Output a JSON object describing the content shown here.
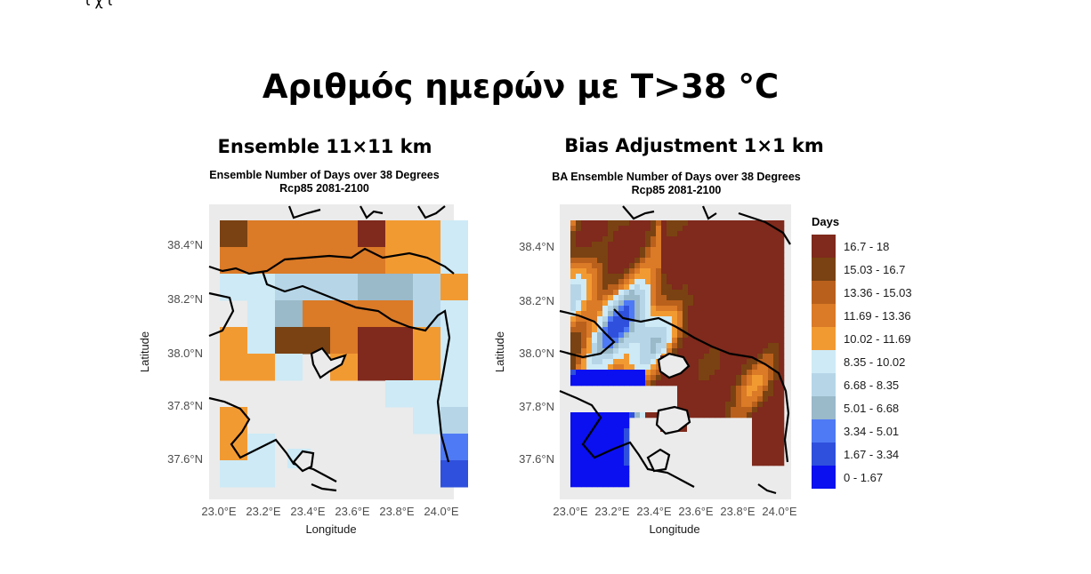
{
  "top_fragment": "ι χ ι",
  "main_title": "Αριθμός ημερών με Τ>38 °C",
  "panels": [
    {
      "subtitle": "Ensemble 11×11 km",
      "plot_title_line1": "Ensemble Number of Days over 38 Degrees",
      "plot_title_line2": "Rcp85 2081-2100"
    },
    {
      "subtitle": "Bias Adjustment 1×1 km",
      "plot_title_line1": "BA Ensemble Number of Days over 38 Degrees",
      "plot_title_line2": "Rcp85 2081-2100"
    }
  ],
  "axes": {
    "x_label": "Longitude",
    "y_label": "Latitude",
    "x_ticks": [
      "23.0°E",
      "23.2°E",
      "23.4°E",
      "23.6°E",
      "23.8°E",
      "24.0°E"
    ],
    "y_ticks": [
      "38.4°N",
      "38.2°N",
      "38.0°N",
      "37.8°N",
      "37.6°N"
    ]
  },
  "legend": {
    "title": "Days",
    "items": [
      {
        "label": "16.7 - 18",
        "color": "#7f2a1c"
      },
      {
        "label": "15.03 - 16.7",
        "color": "#7a4212"
      },
      {
        "label": "13.36 - 15.03",
        "color": "#b9601c"
      },
      {
        "label": "11.69 - 13.36",
        "color": "#db7a27"
      },
      {
        "label": "10.02 - 11.69",
        "color": "#f29a32"
      },
      {
        "label": "8.35 - 10.02",
        "color": "#cdeaf6"
      },
      {
        "label": "6.68 - 8.35",
        "color": "#b6d6e8"
      },
      {
        "label": "5.01 - 6.68",
        "color": "#9ab9c9"
      },
      {
        "label": "3.34 - 5.01",
        "color": "#4f7af5"
      },
      {
        "label": "1.67 - 3.34",
        "color": "#2f50dc"
      },
      {
        "label": "0 - 1.67",
        "color": "#0a10f0"
      }
    ]
  },
  "colors": {
    "panel_background": "#ebebeb",
    "coastline": "#000000"
  }
}
